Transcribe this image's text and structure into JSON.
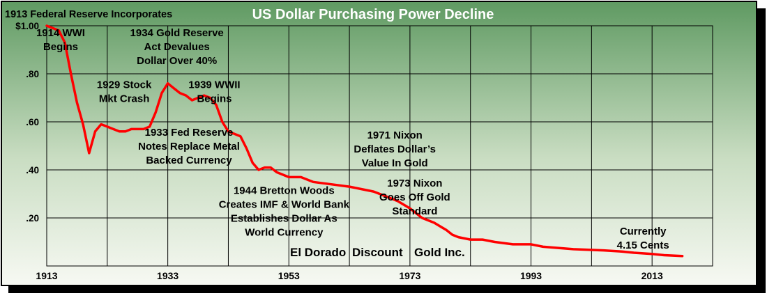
{
  "chart_data": {
    "type": "line",
    "title": "US Dollar Purchasing Power Decline",
    "corner_note": "1913 Federal Reserve Incorporates",
    "credit_parts": [
      "El Dorado",
      "Discount",
      "Gold Inc."
    ],
    "xlabel": "",
    "ylabel": "",
    "xlim": [
      1913,
      2023
    ],
    "ylim": [
      0,
      1.0
    ],
    "grid": true,
    "x_ticks": [
      {
        "value": 1913,
        "label": "1913"
      },
      {
        "value": 1933,
        "label": "1933"
      },
      {
        "value": 1953,
        "label": "1953"
      },
      {
        "value": 1973,
        "label": "1973"
      },
      {
        "value": 1993,
        "label": "1993"
      },
      {
        "value": 2013,
        "label": "2013"
      }
    ],
    "y_ticks": [
      {
        "value": 1.0,
        "label": "$1.00"
      },
      {
        "value": 0.8,
        "label": ".80"
      },
      {
        "value": 0.6,
        "label": ".60"
      },
      {
        "value": 0.4,
        "label": ".40"
      },
      {
        "value": 0.2,
        "label": ".20"
      }
    ],
    "series": [
      {
        "color": "#ff0000",
        "x": [
          1913,
          1914,
          1915,
          1916,
          1917,
          1918,
          1919,
          1920,
          1921,
          1922,
          1923,
          1924,
          1925,
          1926,
          1927,
          1928,
          1929,
          1930,
          1931,
          1932,
          1933,
          1934,
          1935,
          1936,
          1937,
          1938,
          1939,
          1940,
          1941,
          1942,
          1943,
          1944,
          1945,
          1946,
          1947,
          1948,
          1949,
          1950,
          1951,
          1952,
          1953,
          1955,
          1957,
          1960,
          1963,
          1965,
          1967,
          1969,
          1971,
          1973,
          1974,
          1975,
          1977,
          1979,
          1980,
          1981,
          1983,
          1985,
          1987,
          1990,
          1993,
          1995,
          2000,
          2005,
          2008,
          2010,
          2013,
          2015,
          2018
        ],
        "values": [
          1.0,
          0.99,
          0.98,
          0.93,
          0.8,
          0.68,
          0.59,
          0.47,
          0.56,
          0.59,
          0.58,
          0.57,
          0.56,
          0.56,
          0.57,
          0.57,
          0.57,
          0.58,
          0.64,
          0.72,
          0.76,
          0.74,
          0.72,
          0.71,
          0.69,
          0.7,
          0.71,
          0.7,
          0.67,
          0.6,
          0.56,
          0.55,
          0.54,
          0.49,
          0.43,
          0.4,
          0.41,
          0.41,
          0.39,
          0.38,
          0.37,
          0.37,
          0.35,
          0.34,
          0.33,
          0.32,
          0.31,
          0.29,
          0.27,
          0.24,
          0.22,
          0.2,
          0.18,
          0.15,
          0.13,
          0.12,
          0.11,
          0.11,
          0.1,
          0.09,
          0.09,
          0.08,
          0.07,
          0.065,
          0.06,
          0.055,
          0.05,
          0.045,
          0.0415
        ]
      }
    ],
    "annotations": [
      {
        "lines": [
          "1914 WWI",
          "Begins"
        ],
        "x": 1915.3,
        "y": 0.957
      },
      {
        "lines": [
          "1934 Gold Reserve",
          "Act Devalues",
          "Dollar Over 40%"
        ],
        "x": 1934.5,
        "y": 0.957
      },
      {
        "lines": [
          "1929 Stock",
          "Mkt Crash"
        ],
        "x": 1925.8,
        "y": 0.74
      },
      {
        "lines": [
          "1939 WWII",
          "Begins"
        ],
        "x": 1940.7,
        "y": 0.74
      },
      {
        "lines": [
          "1933 Fed Reserve",
          "Notes Replace Metal",
          "Backed Currency"
        ],
        "x": 1936.5,
        "y": 0.542
      },
      {
        "lines": [
          "1971 Nixon",
          "Deflates Dollar’s",
          "Value In Gold"
        ],
        "x": 1970.5,
        "y": 0.53
      },
      {
        "lines": [
          "1973 Nixon",
          "Goes Off Gold",
          "Standard"
        ],
        "x": 1973.8,
        "y": 0.33
      },
      {
        "lines": [
          "1944 Bretton Woods",
          "Creates IMF & World Bank",
          "Establishes Dollar As",
          "World Currency"
        ],
        "x": 1952.2,
        "y": 0.3
      },
      {
        "lines": [
          "Currently",
          "4.15 Cents"
        ],
        "x": 2011.5,
        "y": 0.13
      }
    ]
  }
}
